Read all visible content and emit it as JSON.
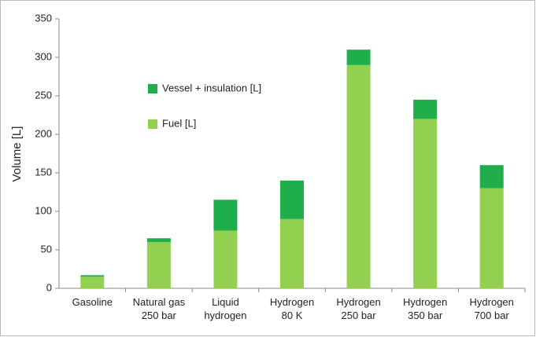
{
  "chart_data": {
    "type": "stacked_bar",
    "y_label": "Volume [L]",
    "categories": [
      "Gasoline",
      "Natural gas\n250 bar",
      "Liquid\nhydrogen",
      "Hydrogen\n80 K",
      "Hydrogen\n250 bar",
      "Hydrogen\n350 bar",
      "Hydrogen\n700 bar"
    ],
    "series": [
      {
        "name": "Fuel [L]",
        "color": "#92d050",
        "values": [
          15,
          60,
          75,
          90,
          290,
          220,
          130
        ]
      },
      {
        "name": "Vessel + insulation [L]",
        "color": "#1fae4b",
        "values": [
          2,
          5,
          40,
          50,
          20,
          25,
          30
        ]
      }
    ],
    "ylim": [
      0,
      350
    ],
    "yticks": [
      0,
      50,
      100,
      150,
      200,
      250,
      300,
      350
    ],
    "grid": false
  }
}
